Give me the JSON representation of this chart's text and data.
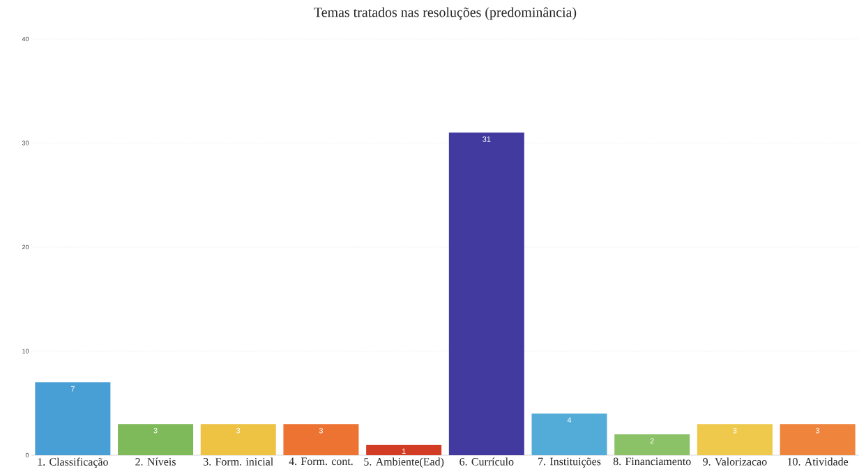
{
  "chart_data": {
    "type": "bar",
    "title": "Temas tratados nas resoluções (predominância)",
    "categories": [
      "1. Classificação",
      "2. Níveis",
      "3. Form. inicial",
      "4. Form. cont.",
      "5. Ambiente(Ead)",
      "6. Currículo",
      "7. Instituições",
      "8. Financiamento",
      "9. Valorizacao",
      "10. Atividade"
    ],
    "values": [
      7,
      3,
      3,
      3,
      1,
      31,
      4,
      2,
      3,
      3
    ],
    "colors": [
      "#489fd6",
      "#7eb95a",
      "#eec243",
      "#ec7332",
      "#d23c25",
      "#433aa0",
      "#53abd8",
      "#8bc267",
      "#efc94c",
      "#ef843c"
    ],
    "ylim": [
      0,
      40
    ],
    "yticks": [
      0,
      10,
      20,
      30,
      40
    ],
    "grid": "y",
    "data_labels": true
  }
}
